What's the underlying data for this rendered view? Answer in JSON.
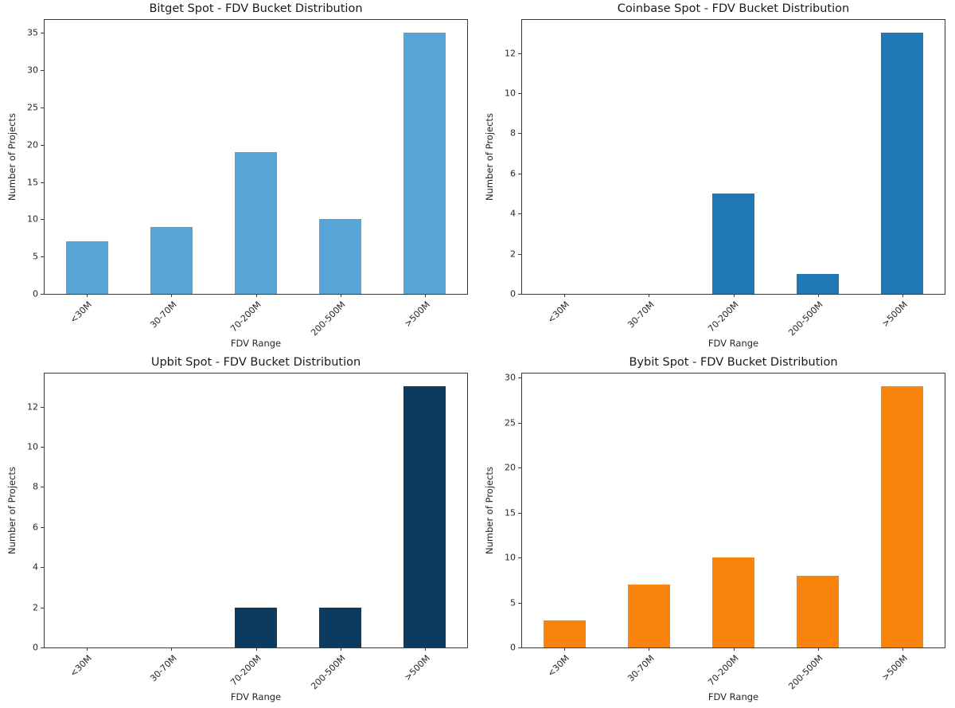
{
  "figure": {
    "background": "#ffffff",
    "layout": "2x2-grid"
  },
  "chart_data": [
    {
      "type": "bar",
      "title": "Bitget Spot - FDV Bucket Distribution",
      "xlabel": "FDV Range",
      "ylabel": "Number of Projects",
      "categories": [
        "<30M",
        "30-70M",
        "70-200M",
        "200-500M",
        ">500M"
      ],
      "values": [
        7,
        9,
        19,
        10,
        35
      ],
      "yticks": [
        0,
        5,
        10,
        15,
        20,
        25,
        30,
        35
      ],
      "ylim": [
        0,
        36.75
      ],
      "bar_color": "#5AA5D7",
      "grid": false,
      "legend": "none"
    },
    {
      "type": "bar",
      "title": "Coinbase Spot - FDV Bucket Distribution",
      "xlabel": "FDV Range",
      "ylabel": "Number of Projects",
      "categories": [
        "<30M",
        "30-70M",
        "70-200M",
        "200-500M",
        ">500M"
      ],
      "values": [
        0,
        0,
        5,
        1,
        13
      ],
      "yticks": [
        0,
        2,
        4,
        6,
        8,
        10,
        12
      ],
      "ylim": [
        0,
        13.65
      ],
      "bar_color": "#1F77B4",
      "grid": false,
      "legend": "none"
    },
    {
      "type": "bar",
      "title": "Upbit Spot - FDV Bucket Distribution",
      "xlabel": "FDV Range",
      "ylabel": "Number of Projects",
      "categories": [
        "<30M",
        "30-70M",
        "70-200M",
        "200-500M",
        ">500M"
      ],
      "values": [
        0,
        0,
        2,
        2,
        13
      ],
      "yticks": [
        0,
        2,
        4,
        6,
        8,
        10,
        12
      ],
      "ylim": [
        0,
        13.65
      ],
      "bar_color": "#0D3A5F",
      "grid": false,
      "legend": "none"
    },
    {
      "type": "bar",
      "title": "Bybit Spot - FDV Bucket Distribution",
      "xlabel": "FDV Range",
      "ylabel": "Number of Projects",
      "categories": [
        "<30M",
        "30-70M",
        "70-200M",
        "200-500M",
        ">500M"
      ],
      "values": [
        3,
        7,
        10,
        8,
        29
      ],
      "yticks": [
        0,
        5,
        10,
        15,
        20,
        25,
        30
      ],
      "ylim": [
        0,
        30.45
      ],
      "bar_color": "#F8830D",
      "grid": false,
      "legend": "none"
    }
  ]
}
